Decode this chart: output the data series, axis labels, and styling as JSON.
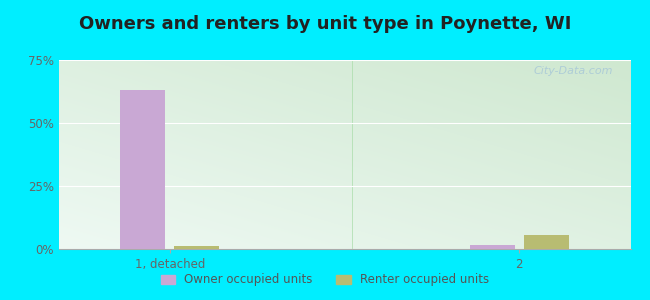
{
  "title": "Owners and renters by unit type in Poynette, WI",
  "categories": [
    "1, detached",
    "2"
  ],
  "owner_values": [
    63,
    1.5
  ],
  "renter_values": [
    1.0,
    5.5
  ],
  "owner_color": "#c9a8d4",
  "renter_color": "#b8bc72",
  "ylim": [
    0,
    75
  ],
  "yticks": [
    0,
    25,
    50,
    75
  ],
  "ytick_labels": [
    "0%",
    "25%",
    "50%",
    "75%"
  ],
  "bar_width": 0.28,
  "outer_bg": "#00eeff",
  "title_fontsize": 13,
  "watermark": "City-Data.com",
  "legend_labels": [
    "Owner occupied units",
    "Renter occupied units"
  ],
  "bg_left": "#cde8d0",
  "bg_right": "#eaf8ee",
  "bg_top": "#f0faf5",
  "grid_color": "#e0ede0"
}
